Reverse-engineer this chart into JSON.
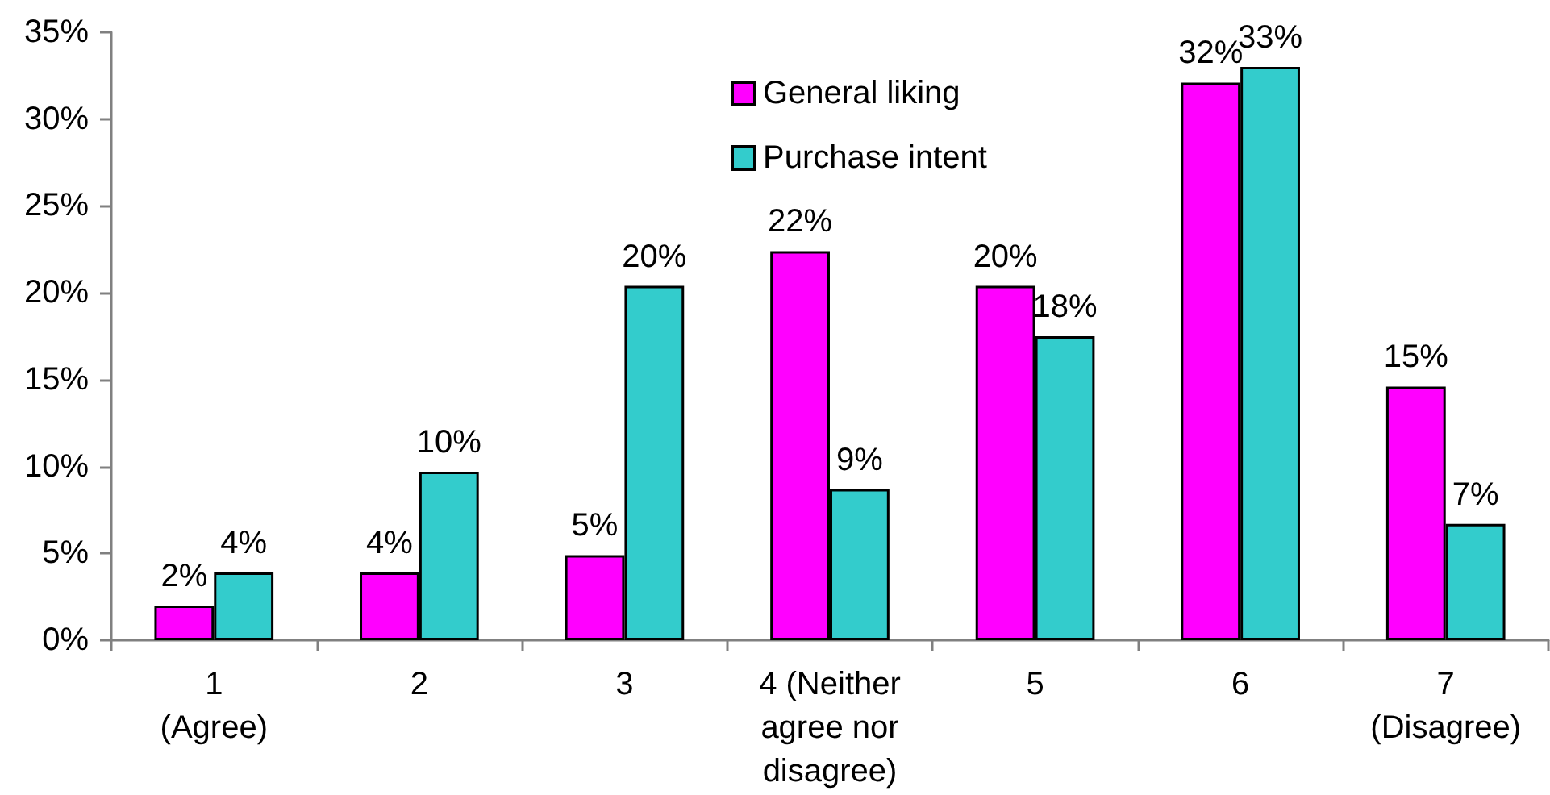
{
  "chart_data": {
    "type": "bar",
    "categories": [
      "1\n(Agree)",
      "2",
      "3",
      "4 (Neither\nagree nor\ndisagree)",
      "5",
      "6",
      "7\n(Disagree)"
    ],
    "series": [
      {
        "name": "General liking",
        "color": "#ff00ff",
        "values": [
          2.0,
          3.9,
          4.9,
          22.4,
          20.4,
          32.1,
          14.6
        ],
        "value_labels": [
          "2%",
          "4%",
          "5%",
          "22%",
          "20%",
          "32%",
          "15%"
        ]
      },
      {
        "name": "Purchase intent",
        "color": "#33cccc",
        "values": [
          3.9,
          9.7,
          20.4,
          8.7,
          17.5,
          33.0,
          6.7
        ],
        "value_labels": [
          "4%",
          "10%",
          "20%",
          "9%",
          "18%",
          "33%",
          "7%"
        ]
      }
    ],
    "ylim": [
      0,
      35
    ],
    "yticks": [
      {
        "value": 0,
        "label": "0%"
      },
      {
        "value": 5,
        "label": "5%"
      },
      {
        "value": 10,
        "label": "10%"
      },
      {
        "value": 15,
        "label": "15%"
      },
      {
        "value": 20,
        "label": "20%"
      },
      {
        "value": 25,
        "label": "25%"
      },
      {
        "value": 30,
        "label": "30%"
      },
      {
        "value": 35,
        "label": "35%"
      }
    ],
    "grid": false,
    "legend": "top"
  }
}
